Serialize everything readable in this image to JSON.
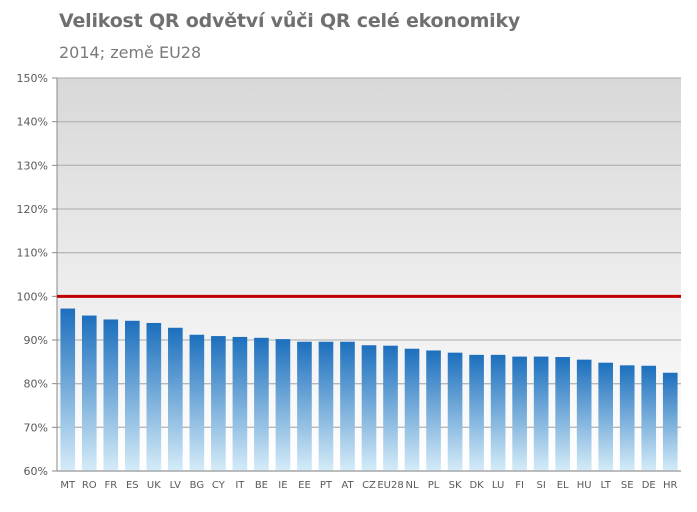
{
  "chart_data": {
    "type": "bar",
    "title": "Velikost QR odvětví vůči QR celé ekonomiky",
    "subtitle": "2014; země EU28",
    "categories": [
      "MT",
      "RO",
      "FR",
      "ES",
      "UK",
      "LV",
      "BG",
      "CY",
      "IT",
      "BE",
      "IE",
      "EE",
      "PT",
      "AT",
      "CZ",
      "EU28",
      "NL",
      "PL",
      "SK",
      "DK",
      "LU",
      "FI",
      "SI",
      "EL",
      "HU",
      "LT",
      "SE",
      "DE",
      "HR"
    ],
    "values": [
      97.2,
      95.6,
      94.7,
      94.4,
      93.9,
      92.8,
      91.2,
      90.9,
      90.7,
      90.5,
      90.2,
      89.6,
      89.6,
      89.6,
      88.8,
      88.7,
      88.0,
      87.6,
      87.1,
      86.6,
      86.6,
      86.2,
      86.2,
      86.1,
      85.5,
      84.8,
      84.2,
      84.1,
      82.5
    ],
    "ylim": [
      60,
      150
    ],
    "yticks": [
      60,
      70,
      80,
      90,
      100,
      110,
      120,
      130,
      140,
      150
    ],
    "ytick_labels": [
      "60%",
      "70%",
      "80%",
      "90%",
      "100%",
      "110%",
      "120%",
      "130%",
      "140%",
      "150%"
    ],
    "reference_line": {
      "value": 100,
      "color": "#c00000"
    },
    "bar_gradient": {
      "top": "#1c6fbd",
      "bottom": "#d5ecf8"
    },
    "background_gradient": {
      "top": "#d8d8d8",
      "bottom": "#ffffff"
    },
    "grid": true,
    "legend": "none"
  }
}
